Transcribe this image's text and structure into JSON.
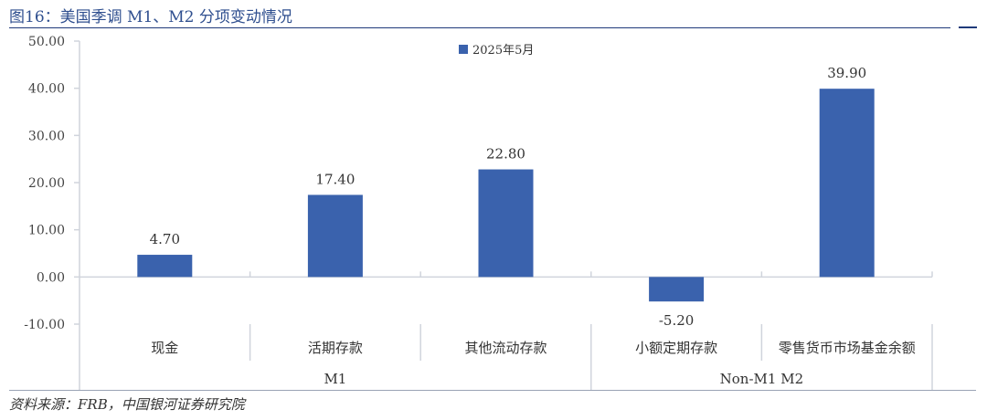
{
  "figure": {
    "title": "图16：美国季调 M1、M2 分项变动情况",
    "source": "资料来源：FRB，中国银河证券研究院"
  },
  "chart_data": {
    "type": "bar",
    "categories": [
      "现金",
      "活期存款",
      "其他流动存款",
      "小额定期存款",
      "零售货币市场基金余额"
    ],
    "groups": [
      {
        "label": "M1",
        "categories": [
          "现金",
          "活期存款",
          "其他流动存款"
        ]
      },
      {
        "label": "Non-M1 M2",
        "categories": [
          "小额定期存款",
          "零售货币市场基金余额"
        ]
      }
    ],
    "series": [
      {
        "name": "2025年5月",
        "values": [
          4.7,
          17.4,
          22.8,
          -5.2,
          39.9
        ],
        "color": "#3a62ad"
      }
    ],
    "data_labels": [
      "4.70",
      "17.40",
      "22.80",
      "-5.20",
      "39.90"
    ],
    "ylim": [
      -10,
      50
    ],
    "yticks": [
      "50.00",
      "40.00",
      "30.00",
      "20.00",
      "10.00",
      "0.00",
      "-10.00"
    ],
    "legend_position": "top-center",
    "grid": false
  }
}
